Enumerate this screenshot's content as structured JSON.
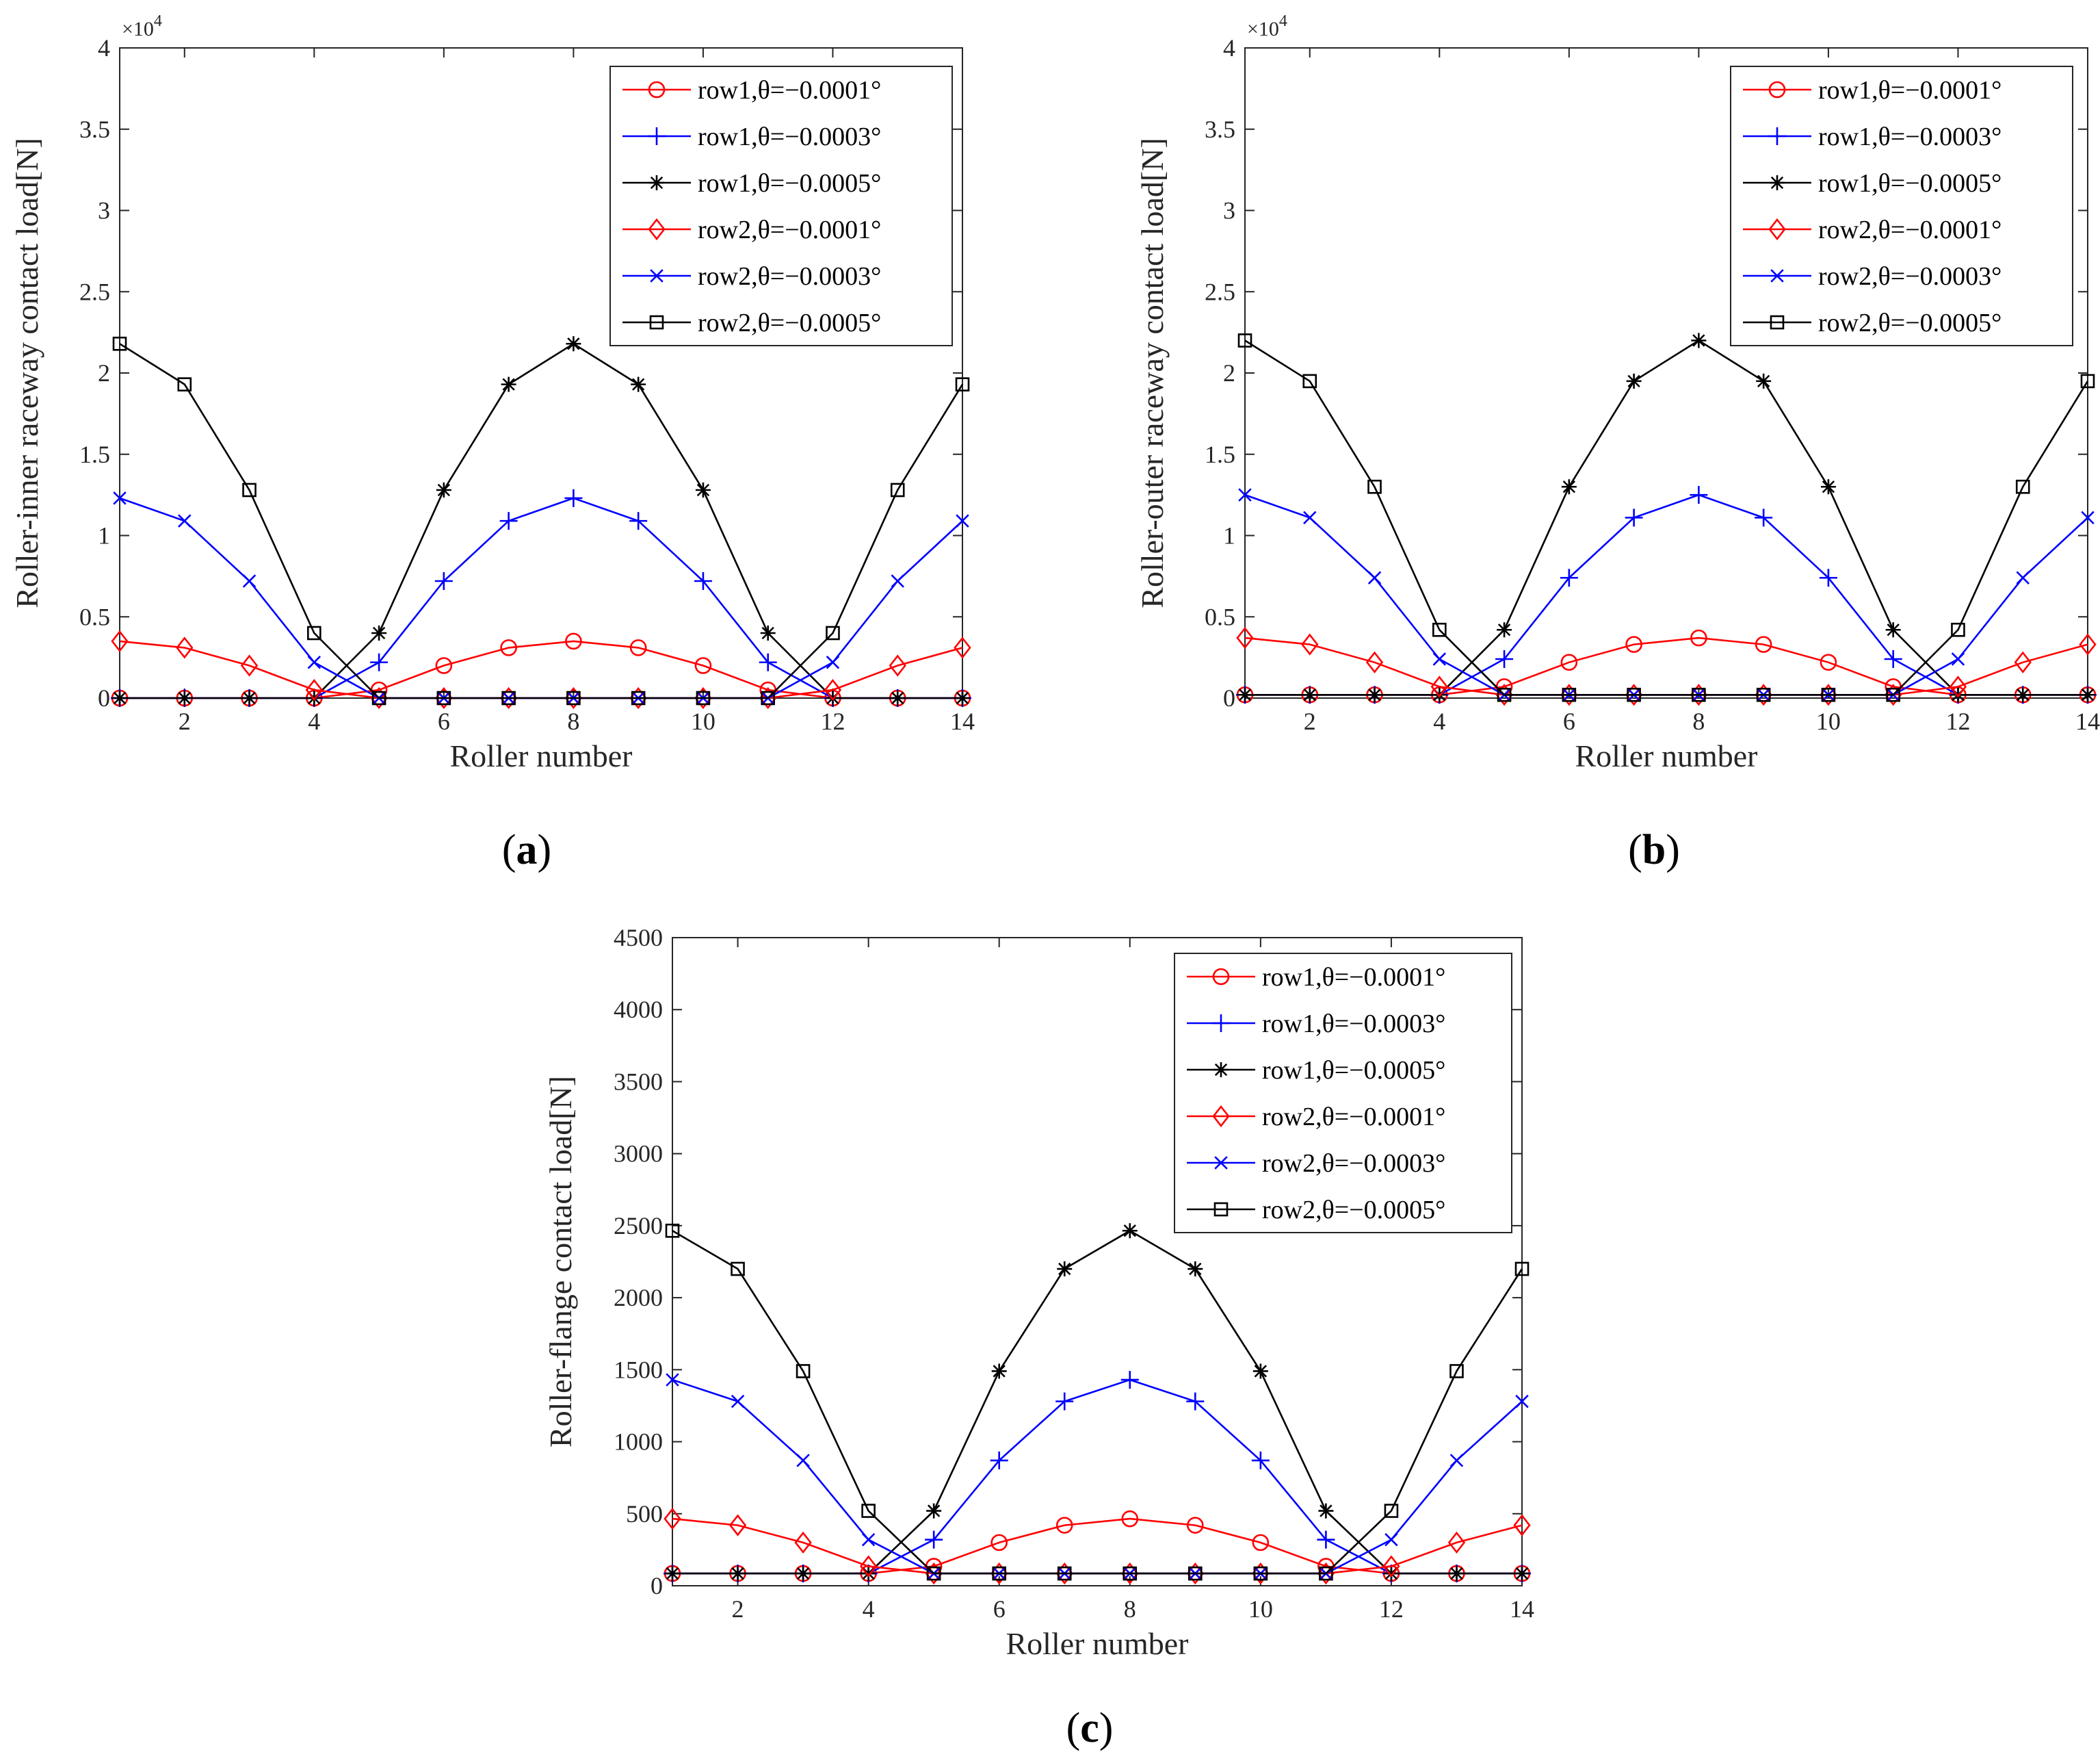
{
  "chart_data": [
    {
      "type": "line",
      "panel_label": [
        "(",
        "a",
        ")"
      ],
      "xlabel": "Roller number",
      "ylabel": "Roller-inner raceway contact load[N]",
      "y_multiplier": [
        "×10",
        "4"
      ],
      "xlim": [
        1,
        14
      ],
      "ylim": [
        0,
        4
      ],
      "x_ticks": [
        2,
        4,
        6,
        8,
        10,
        12,
        14
      ],
      "y_ticks": [
        0,
        0.5,
        1,
        1.5,
        2,
        2.5,
        3,
        3.5,
        4
      ],
      "y_tick_labels": [
        "0",
        "0.5",
        "1",
        "1.5",
        "2",
        "2.5",
        "3",
        "3.5",
        "4"
      ],
      "legend_location": "top-right",
      "x": [
        1,
        2,
        3,
        4,
        5,
        6,
        7,
        8,
        9,
        10,
        11,
        12,
        13,
        14
      ],
      "series": [
        {
          "name": "row1,θ=−0.0001°",
          "color": "#ff0000",
          "marker": "circle",
          "values": [
            0,
            0,
            0,
            0,
            0.05,
            0.2,
            0.31,
            0.35,
            0.31,
            0.2,
            0.05,
            0,
            0,
            0
          ]
        },
        {
          "name": "row1,θ=−0.0003°",
          "color": "#0000ff",
          "marker": "plus",
          "values": [
            0,
            0,
            0,
            0,
            0.22,
            0.72,
            1.09,
            1.23,
            1.09,
            0.72,
            0.22,
            0,
            0,
            0
          ]
        },
        {
          "name": "row1,θ=−0.0005°",
          "color": "#000000",
          "marker": "star",
          "values": [
            0,
            0,
            0,
            0,
            0.4,
            1.28,
            1.93,
            2.18,
            1.93,
            1.28,
            0.4,
            0,
            0,
            0
          ]
        },
        {
          "name": "row2,θ=−0.0001°",
          "color": "#ff0000",
          "marker": "diamond",
          "values": [
            0.35,
            0.31,
            0.2,
            0.05,
            0,
            0,
            0,
            0,
            0,
            0,
            0,
            0.05,
            0.2,
            0.31
          ]
        },
        {
          "name": "row2,θ=−0.0003°",
          "color": "#0000ff",
          "marker": "x",
          "values": [
            1.23,
            1.09,
            0.72,
            0.22,
            0,
            0,
            0,
            0,
            0,
            0,
            0,
            0.22,
            0.72,
            1.09
          ]
        },
        {
          "name": "row2,θ=−0.0005°",
          "color": "#000000",
          "marker": "square",
          "values": [
            2.18,
            1.93,
            1.28,
            0.4,
            0,
            0,
            0,
            0,
            0,
            0,
            0,
            0.4,
            1.28,
            1.93
          ]
        }
      ]
    },
    {
      "type": "line",
      "panel_label": [
        "(",
        "b",
        ")"
      ],
      "xlabel": "Roller number",
      "ylabel": "Roller-outer raceway contact load[N]",
      "y_multiplier": [
        "×10",
        "4"
      ],
      "xlim": [
        1,
        14
      ],
      "ylim": [
        0,
        4
      ],
      "x_ticks": [
        2,
        4,
        6,
        8,
        10,
        12,
        14
      ],
      "y_ticks": [
        0,
        0.5,
        1,
        1.5,
        2,
        2.5,
        3,
        3.5,
        4
      ],
      "y_tick_labels": [
        "0",
        "0.5",
        "1",
        "1.5",
        "2",
        "2.5",
        "3",
        "3.5",
        "4"
      ],
      "legend_location": "top-right",
      "x": [
        1,
        2,
        3,
        4,
        5,
        6,
        7,
        8,
        9,
        10,
        11,
        12,
        13,
        14
      ],
      "series": [
        {
          "name": "row1,θ=−0.0001°",
          "color": "#ff0000",
          "marker": "circle",
          "values": [
            0.02,
            0.02,
            0.02,
            0.02,
            0.07,
            0.22,
            0.33,
            0.37,
            0.33,
            0.22,
            0.07,
            0.02,
            0.02,
            0.02
          ]
        },
        {
          "name": "row1,θ=−0.0003°",
          "color": "#0000ff",
          "marker": "plus",
          "values": [
            0.02,
            0.02,
            0.02,
            0.02,
            0.24,
            0.74,
            1.11,
            1.25,
            1.11,
            0.74,
            0.24,
            0.02,
            0.02,
            0.02
          ]
        },
        {
          "name": "row1,θ=−0.0005°",
          "color": "#000000",
          "marker": "star",
          "values": [
            0.02,
            0.02,
            0.02,
            0.02,
            0.42,
            1.3,
            1.95,
            2.2,
            1.95,
            1.3,
            0.42,
            0.02,
            0.02,
            0.02
          ]
        },
        {
          "name": "row2,θ=−0.0001°",
          "color": "#ff0000",
          "marker": "diamond",
          "values": [
            0.37,
            0.33,
            0.22,
            0.07,
            0.02,
            0.02,
            0.02,
            0.02,
            0.02,
            0.02,
            0.02,
            0.07,
            0.22,
            0.33
          ]
        },
        {
          "name": "row2,θ=−0.0003°",
          "color": "#0000ff",
          "marker": "x",
          "values": [
            1.25,
            1.11,
            0.74,
            0.24,
            0.02,
            0.02,
            0.02,
            0.02,
            0.02,
            0.02,
            0.02,
            0.24,
            0.74,
            1.11
          ]
        },
        {
          "name": "row2,θ=−0.0005°",
          "color": "#000000",
          "marker": "square",
          "values": [
            2.2,
            1.95,
            1.3,
            0.42,
            0.02,
            0.02,
            0.02,
            0.02,
            0.02,
            0.02,
            0.02,
            0.42,
            1.3,
            1.95
          ]
        }
      ]
    },
    {
      "type": "line",
      "panel_label": [
        "(",
        "c",
        ")"
      ],
      "xlabel": "Roller number",
      "ylabel": "Roller-flange contact load[N]",
      "xlim": [
        1,
        14
      ],
      "ylim": [
        0,
        4500
      ],
      "x_ticks": [
        2,
        4,
        6,
        8,
        10,
        12,
        14
      ],
      "y_ticks": [
        0,
        500,
        1000,
        1500,
        2000,
        2500,
        3000,
        3500,
        4000,
        4500
      ],
      "y_tick_labels": [
        "0",
        "500",
        "1000",
        "1500",
        "2000",
        "2500",
        "3000",
        "3500",
        "4000",
        "4500"
      ],
      "legend_location": "top-right",
      "x": [
        1,
        2,
        3,
        4,
        5,
        6,
        7,
        8,
        9,
        10,
        11,
        12,
        13,
        14
      ],
      "series": [
        {
          "name": "row1,θ=−0.0001°",
          "color": "#ff0000",
          "marker": "circle",
          "values": [
            85,
            85,
            85,
            85,
            135,
            300,
            420,
            465,
            420,
            300,
            135,
            85,
            85,
            85
          ]
        },
        {
          "name": "row1,θ=−0.0003°",
          "color": "#0000ff",
          "marker": "plus",
          "values": [
            85,
            85,
            85,
            85,
            320,
            870,
            1280,
            1430,
            1280,
            870,
            320,
            85,
            85,
            85
          ]
        },
        {
          "name": "row1,θ=−0.0005°",
          "color": "#000000",
          "marker": "star",
          "values": [
            85,
            85,
            85,
            85,
            520,
            1490,
            2200,
            2465,
            2200,
            1490,
            520,
            85,
            85,
            85
          ]
        },
        {
          "name": "row2,θ=−0.0001°",
          "color": "#ff0000",
          "marker": "diamond",
          "values": [
            465,
            420,
            300,
            135,
            85,
            85,
            85,
            85,
            85,
            85,
            85,
            135,
            300,
            420
          ]
        },
        {
          "name": "row2,θ=−0.0003°",
          "color": "#0000ff",
          "marker": "x",
          "values": [
            1430,
            1280,
            870,
            320,
            85,
            85,
            85,
            85,
            85,
            85,
            85,
            320,
            870,
            1280
          ]
        },
        {
          "name": "row2,θ=−0.0005°",
          "color": "#000000",
          "marker": "square",
          "values": [
            2465,
            2200,
            1490,
            520,
            85,
            85,
            85,
            85,
            85,
            85,
            85,
            520,
            1490,
            2200
          ]
        }
      ]
    }
  ]
}
